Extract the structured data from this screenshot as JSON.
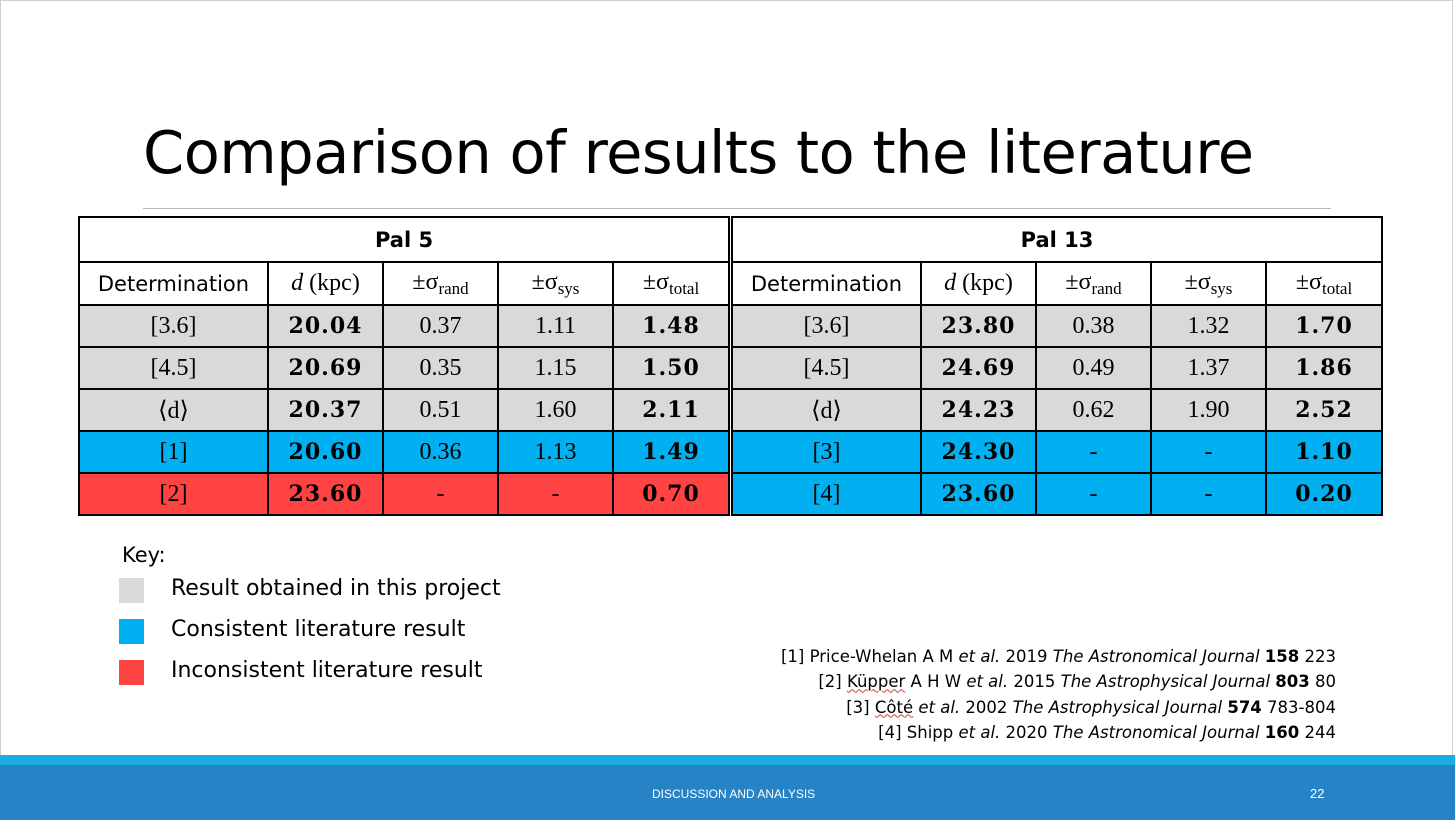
{
  "slide": {
    "title": "Comparison of results to the literature",
    "footer_text": "DISCUSSION AND ANALYSIS",
    "page_number": "22"
  },
  "colors": {
    "project": "#d9d9d9",
    "consistent": "#00b0f0",
    "inconsistent": "#ff4343",
    "footer_bar": "#2683c6",
    "footer_stripe": "#1cade4"
  },
  "pal5": {
    "name": "Pal 5",
    "headers": {
      "determination": "Determination",
      "d_sym": "d",
      "d_unit": " (kpc)",
      "pm": "±σ",
      "rand": "rand",
      "sys": "sys",
      "total": "total"
    },
    "rows": [
      {
        "label": "[3.6]",
        "d": "20.04",
        "rand": "0.37",
        "sys": "1.11",
        "total": "1.48"
      },
      {
        "label": "[4.5]",
        "d": "20.69",
        "rand": "0.35",
        "sys": "1.15",
        "total": "1.50"
      },
      {
        "label": "⟨d⟩",
        "d": "20.37",
        "rand": "0.51",
        "sys": "1.60",
        "total": "2.11"
      },
      {
        "label": "[1]",
        "d": "20.60",
        "rand": "0.36",
        "sys": "1.13",
        "total": "1.49"
      },
      {
        "label": "[2]",
        "d": "23.60",
        "rand": "-",
        "sys": "-",
        "total": "0.70"
      }
    ]
  },
  "pal13": {
    "name": "Pal 13",
    "headers": {
      "determination": "Determination",
      "d_sym": "d",
      "d_unit": " (kpc)",
      "pm": "±σ",
      "rand": "rand",
      "sys": "sys",
      "total": "total"
    },
    "rows": [
      {
        "label": "[3.6]",
        "d": "23.80",
        "rand": "0.38",
        "sys": "1.32",
        "total": "1.70"
      },
      {
        "label": "[4.5]",
        "d": "24.69",
        "rand": "0.49",
        "sys": "1.37",
        "total": "1.86"
      },
      {
        "label": "⟨d⟩",
        "d": "24.23",
        "rand": "0.62",
        "sys": "1.90",
        "total": "2.52"
      },
      {
        "label": "[3]",
        "d": "24.30",
        "rand": "-",
        "sys": "-",
        "total": "1.10"
      },
      {
        "label": "[4]",
        "d": "23.60",
        "rand": "-",
        "sys": "-",
        "total": "0.20"
      }
    ]
  },
  "key": {
    "title": "Key:",
    "items": [
      {
        "label": "Result obtained in this project",
        "color": "#d9d9d9"
      },
      {
        "label": "Consistent literature result",
        "color": "#00b0f0"
      },
      {
        "label": "Inconsistent literature result",
        "color": "#ff4343"
      }
    ]
  },
  "references": [
    {
      "num": "[1]",
      "authors": "Price-Whelan A M",
      "etal": "et al.",
      "year": "2019",
      "journal": "The Astronomical Journal",
      "volume": "158",
      "pages": "223"
    },
    {
      "num": "[2]",
      "authors": "Küpper",
      "authors_rest": " A H W",
      "etal": "et al.",
      "year": "2015",
      "journal": "The Astrophysical Journal",
      "volume": "803",
      "pages": "80"
    },
    {
      "num": "[3]",
      "authors": "Côté",
      "authors_rest": "",
      "etal": "et al.",
      "year": "2002",
      "journal": "The Astrophysical Journal",
      "volume": "574",
      "pages": "783-804"
    },
    {
      "num": "[4]",
      "authors": "Shipp",
      "authors_rest": "",
      "etal": "et al.",
      "year": "2020",
      "journal": "The Astronomical Journal",
      "volume": "160",
      "pages": "244"
    }
  ]
}
